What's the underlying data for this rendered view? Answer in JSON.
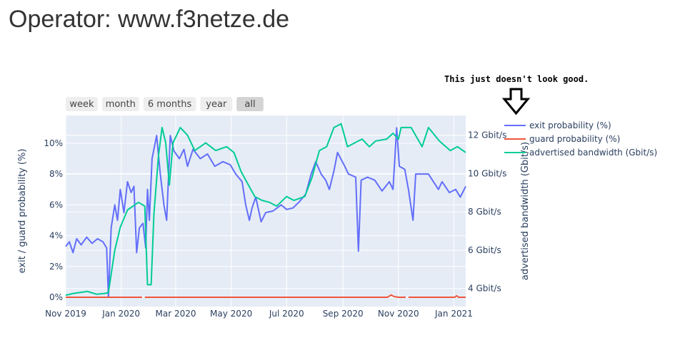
{
  "page_title": "Operator: www.f3netze.de",
  "annotation": "This just doesn't look good.",
  "range_buttons": [
    {
      "label": "week",
      "active": false
    },
    {
      "label": "month",
      "active": false
    },
    {
      "label": "6 months",
      "active": false
    },
    {
      "label": "year",
      "active": false
    },
    {
      "label": "all",
      "active": true
    }
  ],
  "chart_data": {
    "type": "line",
    "x_ticks": [
      {
        "date": "2019-11-01",
        "label": "Nov 2019"
      },
      {
        "date": "2020-01-01",
        "label": "Jan 2020"
      },
      {
        "date": "2020-03-01",
        "label": "Mar 2020"
      },
      {
        "date": "2020-05-01",
        "label": "May 2020"
      },
      {
        "date": "2020-07-01",
        "label": "Jul 2020"
      },
      {
        "date": "2020-09-01",
        "label": "Sep 2020"
      },
      {
        "date": "2020-11-01",
        "label": "Nov 2020"
      },
      {
        "date": "2021-01-01",
        "label": "Jan 2021"
      }
    ],
    "xrange": [
      "2019-11-01",
      "2021-01-14"
    ],
    "y_left": {
      "label": "exit / guard probability (%)",
      "range": [
        -0.6,
        11.8
      ],
      "ticks": [
        {
          "v": 0,
          "label": "0%"
        },
        {
          "v": 2,
          "label": "2%"
        },
        {
          "v": 4,
          "label": "4%"
        },
        {
          "v": 6,
          "label": "6%"
        },
        {
          "v": 8,
          "label": "8%"
        },
        {
          "v": 10,
          "label": "10%"
        }
      ]
    },
    "y_right": {
      "label": "advertised bandwidth (Gbit/s)",
      "range": [
        3.06,
        13.03
      ],
      "ticks": [
        {
          "v": 4,
          "label": "4 Gbit/s"
        },
        {
          "v": 6,
          "label": "6 Gbit/s"
        },
        {
          "v": 8,
          "label": "8 Gbit/s"
        },
        {
          "v": 10,
          "label": "10 Gbit/s"
        },
        {
          "v": 12,
          "label": "12 Gbit/s"
        }
      ]
    },
    "grid": true,
    "legend_position": "right",
    "series": [
      {
        "name": "exit probability (%)",
        "axis": "left",
        "color": "#636efa",
        "points": [
          [
            "2019-11-01",
            3.3
          ],
          [
            "2019-11-05",
            3.6
          ],
          [
            "2019-11-09",
            2.9
          ],
          [
            "2019-11-13",
            3.8
          ],
          [
            "2019-11-18",
            3.4
          ],
          [
            "2019-11-24",
            3.9
          ],
          [
            "2019-11-30",
            3.5
          ],
          [
            "2019-12-06",
            3.8
          ],
          [
            "2019-12-12",
            3.6
          ],
          [
            "2019-12-16",
            3.2
          ],
          [
            "2019-12-18",
            0.0
          ],
          [
            "2019-12-21",
            4.5
          ],
          [
            "2019-12-25",
            6.0
          ],
          [
            "2019-12-28",
            5.0
          ],
          [
            "2019-12-31",
            7.0
          ],
          [
            "2020-01-04",
            5.5
          ],
          [
            "2020-01-08",
            7.5
          ],
          [
            "2020-01-12",
            6.8
          ],
          [
            "2020-01-15",
            7.2
          ],
          [
            "2020-01-18",
            2.9
          ],
          [
            "2020-01-21",
            4.5
          ],
          [
            "2020-01-25",
            4.8
          ],
          [
            "2020-01-28",
            3.2
          ],
          [
            "2020-01-30",
            7.0
          ],
          [
            "2020-02-01",
            5.0
          ],
          [
            "2020-02-04",
            9.0
          ],
          [
            "2020-02-09",
            10.5
          ],
          [
            "2020-02-13",
            8.0
          ],
          [
            "2020-02-17",
            6.0
          ],
          [
            "2020-02-20",
            5.0
          ],
          [
            "2020-02-24",
            10.5
          ],
          [
            "2020-02-28",
            9.5
          ],
          [
            "2020-03-05",
            9.0
          ],
          [
            "2020-03-10",
            9.6
          ],
          [
            "2020-03-14",
            8.5
          ],
          [
            "2020-03-20",
            9.6
          ],
          [
            "2020-03-28",
            9.0
          ],
          [
            "2020-04-05",
            9.3
          ],
          [
            "2020-04-13",
            8.5
          ],
          [
            "2020-04-22",
            8.8
          ],
          [
            "2020-04-30",
            8.6
          ],
          [
            "2020-05-06",
            8.0
          ],
          [
            "2020-05-13",
            7.5
          ],
          [
            "2020-05-17",
            6.0
          ],
          [
            "2020-05-21",
            5.0
          ],
          [
            "2020-05-24",
            5.8
          ],
          [
            "2020-05-28",
            6.5
          ],
          [
            "2020-06-03",
            4.9
          ],
          [
            "2020-06-08",
            5.5
          ],
          [
            "2020-06-16",
            5.6
          ],
          [
            "2020-06-25",
            6.0
          ],
          [
            "2020-07-01",
            5.7
          ],
          [
            "2020-07-08",
            5.8
          ],
          [
            "2020-07-15",
            6.2
          ],
          [
            "2020-07-22",
            6.7
          ],
          [
            "2020-07-28",
            8.0
          ],
          [
            "2020-08-02",
            8.8
          ],
          [
            "2020-08-08",
            8.0
          ],
          [
            "2020-08-13",
            7.6
          ],
          [
            "2020-08-17",
            7.0
          ],
          [
            "2020-08-22",
            8.2
          ],
          [
            "2020-08-26",
            9.4
          ],
          [
            "2020-09-03",
            8.5
          ],
          [
            "2020-09-07",
            8.0
          ],
          [
            "2020-09-15",
            7.8
          ],
          [
            "2020-09-18",
            3.0
          ],
          [
            "2020-09-21",
            7.6
          ],
          [
            "2020-09-28",
            7.8
          ],
          [
            "2020-10-06",
            7.6
          ],
          [
            "2020-10-14",
            6.9
          ],
          [
            "2020-10-22",
            7.5
          ],
          [
            "2020-10-26",
            7.0
          ],
          [
            "2020-10-30",
            11.0
          ],
          [
            "2020-11-02",
            8.5
          ],
          [
            "2020-11-08",
            8.3
          ],
          [
            "2020-11-12",
            7.0
          ],
          [
            "2020-11-17",
            5.0
          ],
          [
            "2020-11-20",
            8.0
          ],
          [
            "2020-12-04",
            8.0
          ],
          [
            "2020-12-15",
            7.0
          ],
          [
            "2020-12-19",
            7.5
          ],
          [
            "2020-12-27",
            6.8
          ],
          [
            "2021-01-03",
            7.0
          ],
          [
            "2021-01-08",
            6.5
          ],
          [
            "2021-01-14",
            7.2
          ]
        ]
      },
      {
        "name": "guard probability (%)",
        "axis": "left",
        "color": "#ef553b",
        "points": [
          [
            "2019-11-01",
            0
          ],
          [
            "2020-01-24",
            0
          ],
          [
            "2020-01-26",
            null
          ],
          [
            "2020-01-27",
            0
          ],
          [
            "2020-10-20",
            0
          ],
          [
            "2020-10-24",
            0.15
          ],
          [
            "2020-10-27",
            0.05
          ],
          [
            "2020-11-01",
            0
          ],
          [
            "2020-11-09",
            0
          ],
          [
            "2020-11-10",
            null
          ],
          [
            "2020-11-12",
            0
          ],
          [
            "2021-01-02",
            0
          ],
          [
            "2021-01-04",
            0.1
          ],
          [
            "2021-01-06",
            0
          ],
          [
            "2021-01-14",
            0
          ]
        ]
      },
      {
        "name": "advertised bandwidth (Gbit/s)",
        "axis": "right",
        "color": "#00cc96",
        "points": [
          [
            "2019-11-01",
            3.65
          ],
          [
            "2019-11-10",
            3.75
          ],
          [
            "2019-11-25",
            3.85
          ],
          [
            "2019-12-05",
            3.7
          ],
          [
            "2019-12-15",
            3.75
          ],
          [
            "2019-12-18",
            3.8
          ],
          [
            "2019-12-25",
            6.0
          ],
          [
            "2019-12-31",
            7.2
          ],
          [
            "2020-01-08",
            8.1
          ],
          [
            "2020-01-20",
            8.5
          ],
          [
            "2020-01-27",
            8.3
          ],
          [
            "2020-01-30",
            4.2
          ],
          [
            "2020-02-03",
            4.2
          ],
          [
            "2020-02-06",
            7.9
          ],
          [
            "2020-02-11",
            10.9
          ],
          [
            "2020-02-15",
            12.4
          ],
          [
            "2020-02-19",
            11.6
          ],
          [
            "2020-02-23",
            9.4
          ],
          [
            "2020-02-27",
            11.6
          ],
          [
            "2020-03-06",
            12.4
          ],
          [
            "2020-03-14",
            12.0
          ],
          [
            "2020-03-22",
            11.2
          ],
          [
            "2020-04-03",
            11.6
          ],
          [
            "2020-04-14",
            11.2
          ],
          [
            "2020-04-26",
            11.4
          ],
          [
            "2020-05-04",
            11.1
          ],
          [
            "2020-05-12",
            10.1
          ],
          [
            "2020-05-20",
            9.4
          ],
          [
            "2020-05-27",
            8.8
          ],
          [
            "2020-06-04",
            8.6
          ],
          [
            "2020-06-12",
            8.5
          ],
          [
            "2020-06-20",
            8.3
          ],
          [
            "2020-07-01",
            8.8
          ],
          [
            "2020-07-09",
            8.6
          ],
          [
            "2020-07-21",
            8.8
          ],
          [
            "2020-07-29",
            9.8
          ],
          [
            "2020-08-06",
            11.2
          ],
          [
            "2020-08-14",
            11.4
          ],
          [
            "2020-08-22",
            12.4
          ],
          [
            "2020-08-30",
            12.6
          ],
          [
            "2020-09-06",
            11.4
          ],
          [
            "2020-09-14",
            11.6
          ],
          [
            "2020-09-22",
            11.8
          ],
          [
            "2020-09-30",
            11.4
          ],
          [
            "2020-10-07",
            11.7
          ],
          [
            "2020-10-19",
            11.8
          ],
          [
            "2020-10-26",
            12.1
          ],
          [
            "2020-11-01",
            11.8
          ],
          [
            "2020-11-04",
            12.4
          ],
          [
            "2020-11-15",
            12.4
          ],
          [
            "2020-11-27",
            11.4
          ],
          [
            "2020-12-04",
            12.4
          ],
          [
            "2020-12-16",
            11.7
          ],
          [
            "2020-12-28",
            11.2
          ],
          [
            "2021-01-05",
            11.4
          ],
          [
            "2021-01-14",
            11.1
          ]
        ]
      }
    ]
  }
}
